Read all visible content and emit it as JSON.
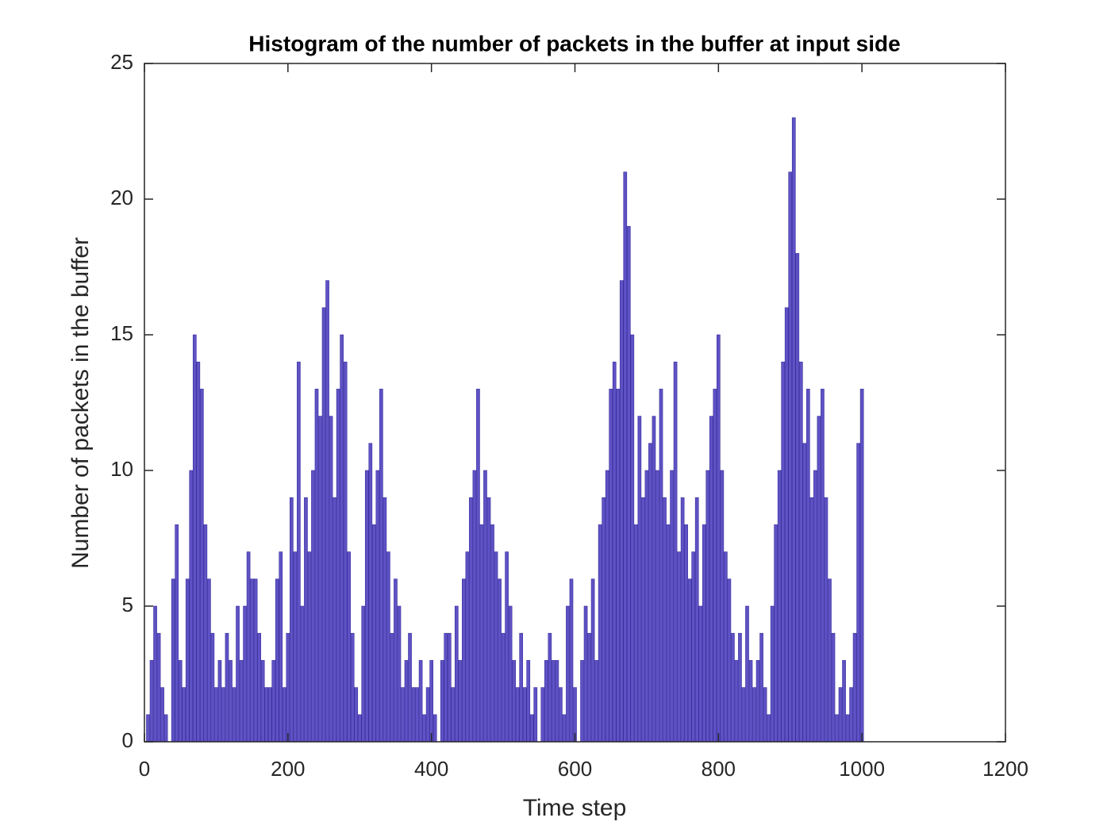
{
  "chart_data": {
    "type": "bar",
    "title": "Histogram of the number of packets in the buffer at input side",
    "x_label": "Time step",
    "y_label": "Number of packets in the buffer",
    "color": "#5e52c4",
    "edge_color": "#3a2f9e",
    "x": [
      5,
      10,
      15,
      20,
      25,
      30,
      35,
      40,
      45,
      50,
      55,
      60,
      65,
      70,
      75,
      80,
      85,
      90,
      95,
      100,
      105,
      110,
      115,
      120,
      125,
      130,
      135,
      140,
      145,
      150,
      155,
      160,
      165,
      170,
      175,
      180,
      185,
      190,
      195,
      200,
      205,
      210,
      215,
      220,
      225,
      230,
      235,
      240,
      245,
      250,
      255,
      260,
      265,
      270,
      275,
      280,
      285,
      290,
      295,
      300,
      305,
      310,
      315,
      320,
      325,
      330,
      335,
      340,
      345,
      350,
      355,
      360,
      365,
      370,
      375,
      380,
      385,
      390,
      395,
      400,
      405,
      410,
      415,
      420,
      425,
      430,
      435,
      440,
      445,
      450,
      455,
      460,
      465,
      470,
      475,
      480,
      485,
      490,
      495,
      500,
      505,
      510,
      515,
      520,
      525,
      530,
      535,
      540,
      545,
      550,
      555,
      560,
      565,
      570,
      575,
      580,
      585,
      590,
      595,
      600,
      605,
      610,
      615,
      620,
      625,
      630,
      635,
      640,
      645,
      650,
      655,
      660,
      665,
      670,
      675,
      680,
      685,
      690,
      695,
      700,
      705,
      710,
      715,
      720,
      725,
      730,
      735,
      740,
      745,
      750,
      755,
      760,
      765,
      770,
      775,
      780,
      785,
      790,
      795,
      800,
      805,
      810,
      815,
      820,
      825,
      830,
      835,
      840,
      845,
      850,
      855,
      860,
      865,
      870,
      875,
      880,
      885,
      890,
      895,
      900,
      905,
      910,
      915,
      920,
      925,
      930,
      935,
      940,
      945,
      950,
      955,
      960,
      965,
      970,
      975,
      980,
      985,
      990,
      995,
      1000
    ],
    "values": [
      1,
      3,
      5,
      4,
      2,
      1,
      0,
      6,
      8,
      3,
      2,
      6,
      10,
      15,
      14,
      13,
      8,
      6,
      4,
      2,
      3,
      2,
      4,
      3,
      2,
      5,
      3,
      5,
      7,
      6,
      6,
      4,
      3,
      2,
      2,
      3,
      6,
      7,
      2,
      4,
      9,
      7,
      14,
      5,
      9,
      7,
      10,
      13,
      12,
      16,
      17,
      12,
      9,
      13,
      15,
      14,
      7,
      4,
      2,
      1,
      5,
      10,
      11,
      8,
      10,
      13,
      9,
      7,
      4,
      6,
      5,
      2,
      3,
      4,
      2,
      2,
      3,
      1,
      2,
      3,
      1,
      0,
      3,
      4,
      4,
      2,
      5,
      3,
      6,
      7,
      9,
      10,
      13,
      8,
      10,
      9,
      8,
      7,
      6,
      4,
      7,
      5,
      3,
      2,
      4,
      2,
      3,
      1,
      2,
      0,
      2,
      3,
      4,
      3,
      3,
      2,
      1,
      5,
      6,
      2,
      0,
      3,
      5,
      4,
      6,
      3,
      8,
      9,
      10,
      13,
      14,
      13,
      17,
      21,
      19,
      15,
      8,
      12,
      9,
      10,
      11,
      12,
      10,
      13,
      9,
      8,
      10,
      14,
      7,
      9,
      8,
      6,
      7,
      9,
      5,
      8,
      10,
      12,
      13,
      15,
      10,
      7,
      6,
      4,
      3,
      4,
      2,
      5,
      3,
      2,
      3,
      4,
      2,
      1,
      5,
      8,
      10,
      14,
      16,
      21,
      23,
      18,
      14,
      11,
      13,
      9,
      10,
      12,
      13,
      9,
      6,
      4,
      1,
      2,
      3,
      1,
      2,
      4,
      11,
      13
    ],
    "xlim": [
      0,
      1200
    ],
    "xticks": [
      0,
      200,
      400,
      600,
      800,
      1000,
      1200
    ],
    "ylim": [
      0,
      25
    ],
    "yticks": [
      0,
      5,
      10,
      15,
      20,
      25
    ],
    "grid": false
  }
}
